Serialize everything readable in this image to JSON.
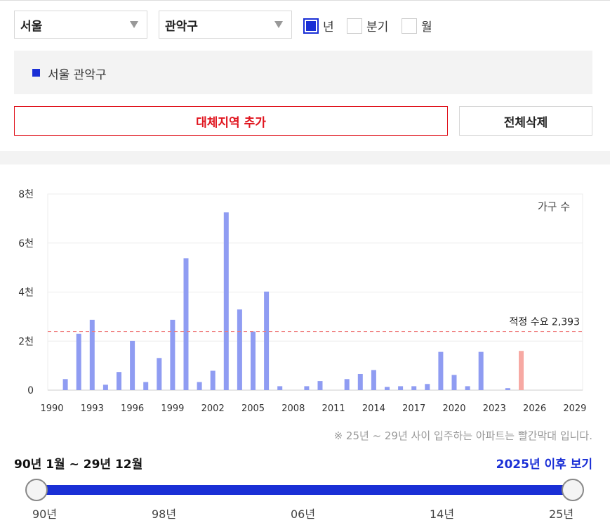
{
  "filters": {
    "city": "서울",
    "district": "관악구",
    "period_options": [
      {
        "label": "년",
        "checked": true
      },
      {
        "label": "분기",
        "checked": false
      },
      {
        "label": "월",
        "checked": false
      }
    ]
  },
  "legend": {
    "label": "서울 관악구",
    "color": "#1a2fd6"
  },
  "buttons": {
    "add_region": "대체지역 추가",
    "delete_all": "전체삭제"
  },
  "chart_data": {
    "type": "bar",
    "series_label": "가구 수",
    "y_ticks": [
      "0",
      "2천",
      "4천",
      "6천",
      "8천"
    ],
    "ylim": [
      0,
      8000
    ],
    "x_ticks": [
      "1990",
      "1993",
      "1996",
      "1999",
      "2002",
      "2005",
      "2008",
      "2011",
      "2014",
      "2017",
      "2020",
      "2023",
      "2026",
      "2029"
    ],
    "xlim": [
      1990,
      2029
    ],
    "reference_line": {
      "label": "적정 수요 2,393",
      "value": 2393
    },
    "bars": [
      {
        "year": 1991,
        "value": 450
      },
      {
        "year": 1992,
        "value": 2300
      },
      {
        "year": 1993,
        "value": 2870
      },
      {
        "year": 1994,
        "value": 220
      },
      {
        "year": 1995,
        "value": 740
      },
      {
        "year": 1996,
        "value": 2010
      },
      {
        "year": 1997,
        "value": 330
      },
      {
        "year": 1998,
        "value": 1310
      },
      {
        "year": 1999,
        "value": 2870
      },
      {
        "year": 2000,
        "value": 5380
      },
      {
        "year": 2001,
        "value": 330
      },
      {
        "year": 2002,
        "value": 790
      },
      {
        "year": 2003,
        "value": 7250
      },
      {
        "year": 2004,
        "value": 3290
      },
      {
        "year": 2005,
        "value": 2390
      },
      {
        "year": 2006,
        "value": 4020
      },
      {
        "year": 2007,
        "value": 160
      },
      {
        "year": 2009,
        "value": 160
      },
      {
        "year": 2010,
        "value": 370
      },
      {
        "year": 2012,
        "value": 450
      },
      {
        "year": 2013,
        "value": 660
      },
      {
        "year": 2014,
        "value": 820
      },
      {
        "year": 2015,
        "value": 130
      },
      {
        "year": 2016,
        "value": 160
      },
      {
        "year": 2017,
        "value": 160
      },
      {
        "year": 2018,
        "value": 250
      },
      {
        "year": 2019,
        "value": 1560
      },
      {
        "year": 2020,
        "value": 620
      },
      {
        "year": 2021,
        "value": 160
      },
      {
        "year": 2022,
        "value": 1560
      },
      {
        "year": 2024,
        "value": 80
      },
      {
        "year": 2025,
        "value": 1600,
        "future": true
      }
    ],
    "colors": {
      "bar": "#8f9cf2",
      "future_bar": "#f7a9a3",
      "reference": "#f07b7b"
    }
  },
  "note": "※ 25년 ~ 29년 사이 입주하는 아파트는 빨간막대 입니다.",
  "range": {
    "label": "90년 1월 ~ 29년 12월",
    "after_link": "2025년 이후 보기",
    "ticks": [
      "90년",
      "98년",
      "06년",
      "14년",
      "25년"
    ]
  }
}
